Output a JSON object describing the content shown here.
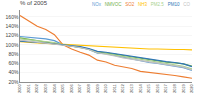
{
  "chart_data": {
    "type": "line",
    "title": "% of 2005",
    "x": [
      2000,
      2001,
      2002,
      2003,
      2004,
      2005,
      2006,
      2007,
      2008,
      2009,
      2010,
      2011,
      2012,
      2013,
      2014,
      2015,
      2016,
      2017,
      2018,
      2019,
      2020
    ],
    "series": [
      {
        "name": "NOx",
        "color": "#5B9BD5",
        "values": [
          118,
          116,
          114,
          113,
          109,
          100,
          97,
          95,
          90,
          82,
          81,
          77,
          73,
          69,
          65,
          62,
          60,
          57,
          54,
          51,
          45
        ]
      },
      {
        "name": "NMVOC",
        "color": "#70AD47",
        "values": [
          115,
          112,
          109,
          107,
          104,
          100,
          97,
          94,
          91,
          85,
          83,
          80,
          77,
          74,
          71,
          68,
          66,
          63,
          61,
          59,
          54
        ]
      },
      {
        "name": "SO2",
        "color": "#ED7D31",
        "values": [
          163,
          152,
          140,
          133,
          122,
          100,
          91,
          84,
          78,
          67,
          63,
          56,
          52,
          49,
          43,
          41,
          39,
          36,
          34,
          31,
          28
        ]
      },
      {
        "name": "NH3",
        "color": "#FFC000",
        "values": [
          107,
          105,
          104,
          103,
          102,
          100,
          99,
          99,
          98,
          96,
          95,
          94,
          93,
          92,
          91,
          91,
          91,
          90,
          90,
          90,
          89
        ]
      },
      {
        "name": "PM2.5",
        "color": "#A9D18E",
        "values": [
          113,
          111,
          109,
          108,
          105,
          100,
          97,
          95,
          90,
          83,
          81,
          78,
          74,
          71,
          68,
          65,
          62,
          59,
          57,
          54,
          48
        ]
      },
      {
        "name": "PM10",
        "color": "#2E75B6",
        "values": [
          108,
          106,
          105,
          104,
          102,
          100,
          98,
          96,
          92,
          86,
          84,
          81,
          78,
          75,
          72,
          69,
          67,
          64,
          62,
          59,
          53
        ]
      },
      {
        "name": "CO",
        "color": "#BFBFBF",
        "values": [
          110,
          108,
          106,
          104,
          102,
          100,
          97,
          94,
          90,
          83,
          80,
          76,
          72,
          69,
          66,
          63,
          60,
          58,
          55,
          52,
          46
        ]
      }
    ],
    "xlim": [
      2000,
      2020
    ],
    "xticks": [
      2000,
      2001,
      2002,
      2003,
      2004,
      2005,
      2006,
      2007,
      2008,
      2009,
      2010,
      2011,
      2012,
      2013,
      2014,
      2015,
      2016,
      2017,
      2018,
      2019,
      2020
    ],
    "ylim": [
      20,
      175
    ],
    "yticks": [
      {
        "value": 20,
        "label": "20%"
      },
      {
        "value": 40,
        "label": "40%"
      },
      {
        "value": 60,
        "label": "60%"
      },
      {
        "value": 80,
        "label": "80%"
      },
      {
        "value": 100,
        "label": "100%"
      },
      {
        "value": 120,
        "label": "120%"
      },
      {
        "value": 140,
        "label": "140%"
      },
      {
        "value": 160,
        "label": "160%"
      }
    ],
    "grid": true,
    "legend": "upper right"
  }
}
